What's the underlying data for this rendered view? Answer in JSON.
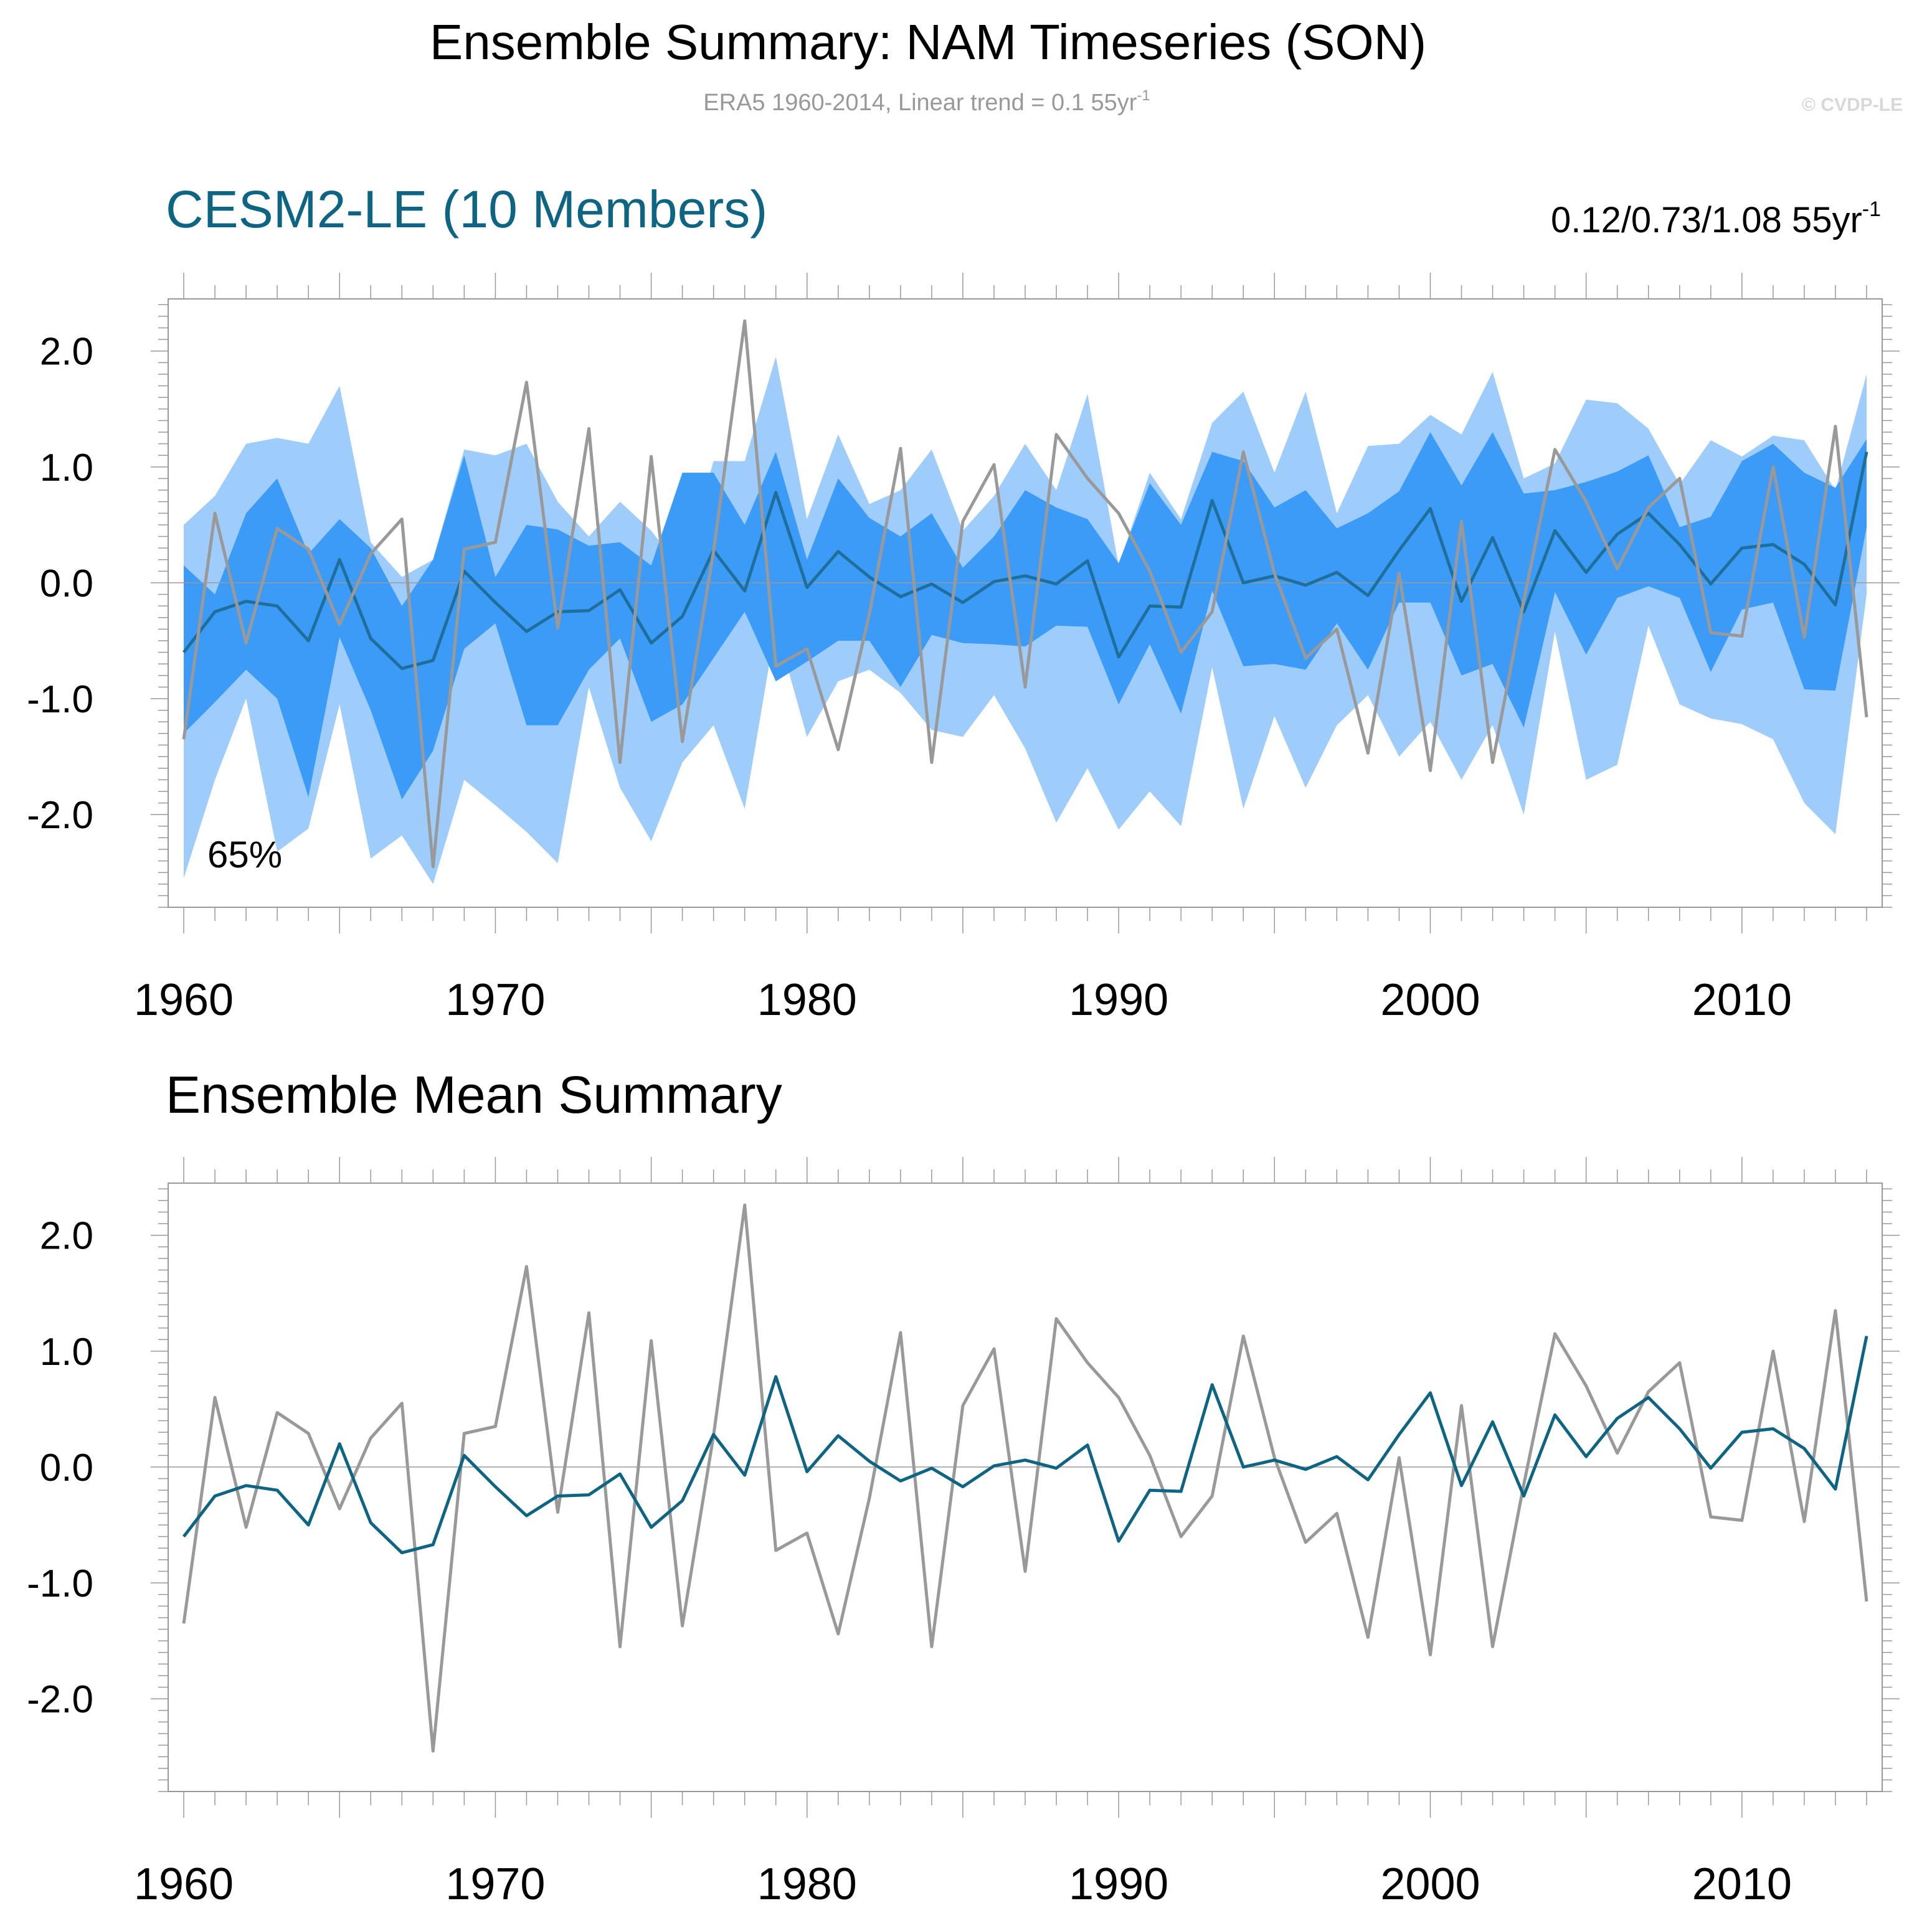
{
  "header": {
    "title": "Ensemble Summary: NAM Timeseries (SON)",
    "subtitle": "ERA5 1960-2014, Linear trend = 0.1 55yr",
    "subtitle_sup": "-1",
    "watermark": "© CVDP-LE"
  },
  "top_panel": {
    "title": "CESM2-LE (10 Members)",
    "trend_text": "0.12/0.73/1.08 55yr",
    "trend_sup": "-1",
    "percent_label": "65%"
  },
  "bottom_panel": {
    "title": "Ensemble Mean Summary"
  },
  "colors": {
    "ensemble_mean": "#1f6f9c",
    "ensemble_mean_bottom": "#0e6483",
    "observations": "#999999",
    "band_outer": "#9fcdfb",
    "band_inner": "#3b9bf7",
    "title_accent": "#0e6483",
    "zero_line": "#999999"
  },
  "chart_data": [
    {
      "type": "area",
      "x": [
        1960,
        1961,
        1962,
        1963,
        1964,
        1965,
        1966,
        1967,
        1968,
        1969,
        1970,
        1971,
        1972,
        1973,
        1974,
        1975,
        1976,
        1977,
        1978,
        1979,
        1980,
        1981,
        1982,
        1983,
        1984,
        1985,
        1986,
        1987,
        1988,
        1989,
        1990,
        1991,
        1992,
        1993,
        1994,
        1995,
        1996,
        1997,
        1998,
        1999,
        2000,
        2001,
        2002,
        2003,
        2004,
        2005,
        2006,
        2007,
        2008,
        2009,
        2010,
        2011,
        2012,
        2013,
        2014
      ],
      "xlim": [
        1959.5,
        2014.5
      ],
      "ylim": [
        -2.8,
        2.45
      ],
      "yticks": [
        "2.0",
        "1.0",
        "0.0",
        "-1.0",
        "-2.0"
      ],
      "xticks": [
        "1960",
        "1970",
        "1980",
        "1990",
        "2000",
        "2010"
      ],
      "series": [
        {
          "role": "outer_upper",
          "values": [
            0.5,
            0.75,
            1.2,
            1.25,
            1.2,
            1.7,
            0.35,
            0.05,
            0.2,
            1.15,
            1.1,
            1.2,
            0.7,
            0.4,
            0.7,
            0.45,
            0.1,
            1.05,
            1.05,
            1.95,
            0.55,
            1.28,
            0.68,
            0.8,
            1.15,
            0.45,
            0.75,
            1.2,
            0.8,
            1.63,
            0.15,
            0.95,
            0.55,
            1.38,
            1.65,
            0.95,
            1.65,
            0.6,
            1.18,
            1.2,
            1.45,
            1.28,
            1.82,
            0.9,
            1.03,
            1.58,
            1.55,
            1.33,
            0.85,
            1.23,
            1.09,
            1.27,
            1.23,
            0.8,
            1.8
          ]
        },
        {
          "role": "inner_upper",
          "values": [
            0.15,
            -0.1,
            0.6,
            0.9,
            0.25,
            0.55,
            0.3,
            -0.2,
            0.2,
            1.1,
            0.05,
            0.5,
            0.46,
            0.32,
            0.35,
            0.15,
            0.95,
            0.95,
            0.5,
            1.13,
            0.2,
            0.9,
            0.56,
            0.4,
            0.6,
            0.13,
            0.4,
            0.8,
            0.65,
            0.55,
            0.17,
            0.86,
            0.5,
            1.13,
            1.05,
            0.65,
            0.8,
            0.47,
            0.6,
            0.79,
            1.3,
            0.84,
            1.3,
            0.77,
            0.8,
            0.87,
            0.96,
            1.1,
            0.48,
            0.57,
            1.05,
            1.2,
            0.95,
            0.82,
            1.24
          ]
        },
        {
          "role": "inner_lower",
          "values": [
            -1.3,
            -1.03,
            -0.75,
            -1.0,
            -1.85,
            -0.47,
            -1.1,
            -1.87,
            -1.45,
            -0.57,
            -0.35,
            -1.23,
            -1.23,
            -0.75,
            -0.48,
            -1.2,
            -1.05,
            -0.65,
            -0.25,
            -0.85,
            -0.68,
            -0.5,
            -0.5,
            -0.9,
            -0.45,
            -0.52,
            -0.53,
            -0.55,
            -0.37,
            -0.38,
            -1.05,
            -0.53,
            -1.13,
            -0.07,
            -0.72,
            -0.7,
            -0.75,
            -0.35,
            -0.75,
            -0.17,
            -0.17,
            -0.8,
            -0.7,
            -1.25,
            -0.08,
            -0.62,
            -0.13,
            -0.03,
            -0.13,
            -0.77,
            -0.23,
            -0.17,
            -0.92,
            -0.93,
            0.48
          ]
        },
        {
          "role": "outer_lower",
          "values": [
            -2.55,
            -1.7,
            -1.0,
            -2.32,
            -2.12,
            -1.05,
            -2.38,
            -2.18,
            -2.6,
            -1.7,
            -1.92,
            -2.15,
            -2.42,
            -0.9,
            -1.77,
            -2.23,
            -1.55,
            -1.23,
            -1.95,
            -0.37,
            -1.33,
            -0.85,
            -0.75,
            -0.95,
            -1.27,
            -1.33,
            -0.97,
            -1.43,
            -2.07,
            -1.6,
            -2.13,
            -1.8,
            -2.1,
            -0.73,
            -1.95,
            -1.15,
            -1.77,
            -1.23,
            -0.97,
            -1.5,
            -1.2,
            -1.7,
            -1.23,
            -2.0,
            -0.42,
            -1.7,
            -1.57,
            -0.37,
            -1.05,
            -1.17,
            -1.22,
            -1.35,
            -1.9,
            -2.17,
            -0.1
          ]
        },
        {
          "role": "ensemble_mean",
          "values": [
            -0.6,
            -0.25,
            -0.16,
            -0.2,
            -0.5,
            0.2,
            -0.48,
            -0.74,
            -0.67,
            0.1,
            -0.17,
            -0.42,
            -0.25,
            -0.24,
            -0.06,
            -0.52,
            -0.29,
            0.28,
            -0.07,
            0.78,
            -0.04,
            0.27,
            0.05,
            -0.12,
            -0.01,
            -0.17,
            0.01,
            0.06,
            -0.01,
            0.19,
            -0.64,
            -0.2,
            -0.21,
            0.71,
            0.0,
            0.06,
            -0.02,
            0.09,
            -0.11,
            0.28,
            0.64,
            -0.16,
            0.39,
            -0.25,
            0.45,
            0.09,
            0.42,
            0.6,
            0.33,
            -0.01,
            0.3,
            0.33,
            0.16,
            -0.19,
            1.13
          ]
        },
        {
          "role": "observations",
          "values": [
            -1.35,
            0.6,
            -0.52,
            0.47,
            0.29,
            -0.36,
            0.25,
            0.55,
            -2.45,
            0.29,
            0.35,
            1.73,
            -0.39,
            1.33,
            -1.55,
            1.09,
            -1.37,
            0.27,
            2.26,
            -0.72,
            -0.57,
            -1.44,
            -0.27,
            1.16,
            -1.55,
            0.53,
            1.02,
            -0.9,
            1.28,
            0.9,
            0.6,
            0.1,
            -0.6,
            -0.25,
            1.13,
            0.08,
            -0.65,
            -0.4,
            -1.47,
            0.08,
            -1.62,
            0.53,
            -1.55,
            -0.15,
            1.15,
            0.7,
            0.12,
            0.65,
            0.9,
            -0.43,
            -0.46,
            1.0,
            -0.47,
            1.35,
            -1.16
          ]
        }
      ]
    },
    {
      "type": "line",
      "x": [
        1960,
        1961,
        1962,
        1963,
        1964,
        1965,
        1966,
        1967,
        1968,
        1969,
        1970,
        1971,
        1972,
        1973,
        1974,
        1975,
        1976,
        1977,
        1978,
        1979,
        1980,
        1981,
        1982,
        1983,
        1984,
        1985,
        1986,
        1987,
        1988,
        1989,
        1990,
        1991,
        1992,
        1993,
        1994,
        1995,
        1996,
        1997,
        1998,
        1999,
        2000,
        2001,
        2002,
        2003,
        2004,
        2005,
        2006,
        2007,
        2008,
        2009,
        2010,
        2011,
        2012,
        2013,
        2014
      ],
      "xlim": [
        1959.5,
        2014.5
      ],
      "ylim": [
        -2.8,
        2.45
      ],
      "yticks": [
        "2.0",
        "1.0",
        "0.0",
        "-1.0",
        "-2.0"
      ],
      "xticks": [
        "1960",
        "1970",
        "1980",
        "1990",
        "2000",
        "2010"
      ],
      "series": [
        {
          "role": "observations",
          "values": [
            -1.35,
            0.6,
            -0.52,
            0.47,
            0.29,
            -0.36,
            0.25,
            0.55,
            -2.45,
            0.29,
            0.35,
            1.73,
            -0.39,
            1.33,
            -1.55,
            1.09,
            -1.37,
            0.27,
            2.26,
            -0.72,
            -0.57,
            -1.44,
            -0.27,
            1.16,
            -1.55,
            0.53,
            1.02,
            -0.9,
            1.28,
            0.9,
            0.6,
            0.1,
            -0.6,
            -0.25,
            1.13,
            0.08,
            -0.65,
            -0.4,
            -1.47,
            0.08,
            -1.62,
            0.53,
            -1.55,
            -0.15,
            1.15,
            0.7,
            0.12,
            0.65,
            0.9,
            -0.43,
            -0.46,
            1.0,
            -0.47,
            1.35,
            -1.16
          ]
        },
        {
          "role": "ensemble_mean",
          "values": [
            -0.6,
            -0.25,
            -0.16,
            -0.2,
            -0.5,
            0.2,
            -0.48,
            -0.74,
            -0.67,
            0.1,
            -0.17,
            -0.42,
            -0.25,
            -0.24,
            -0.06,
            -0.52,
            -0.29,
            0.28,
            -0.07,
            0.78,
            -0.04,
            0.27,
            0.05,
            -0.12,
            -0.01,
            -0.17,
            0.01,
            0.06,
            -0.01,
            0.19,
            -0.64,
            -0.2,
            -0.21,
            0.71,
            0.0,
            0.06,
            -0.02,
            0.09,
            -0.11,
            0.28,
            0.64,
            -0.16,
            0.39,
            -0.25,
            0.45,
            0.09,
            0.42,
            0.6,
            0.33,
            -0.01,
            0.3,
            0.33,
            0.16,
            -0.19,
            1.13
          ]
        }
      ]
    }
  ]
}
